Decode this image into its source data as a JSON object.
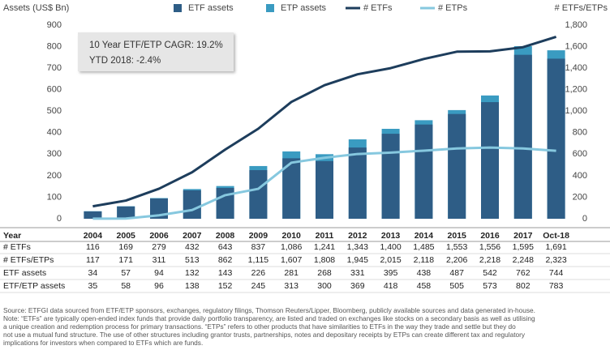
{
  "chart_data": {
    "type": "bar",
    "y_label": "Assets (US$ Bn)",
    "y2_label": "# ETFs/ETPs",
    "annotations": [
      "10 Year ETF/ETP CAGR: 19.2%",
      "YTD 2018: -2.4%"
    ],
    "table_header": "Year",
    "categories": [
      "2004",
      "2005",
      "2006",
      "2007",
      "2008",
      "2009",
      "2010",
      "2011",
      "2012",
      "2013",
      "2014",
      "2015",
      "2016",
      "2017",
      "Oct-18"
    ],
    "ylim": [
      0,
      900
    ],
    "yticks": [
      0,
      100,
      200,
      300,
      400,
      500,
      600,
      700,
      800,
      900
    ],
    "y2lim": [
      0,
      1800
    ],
    "y2ticks": [
      0,
      200,
      400,
      600,
      800,
      {
        "value": 1000,
        "label": "1,000"
      },
      {
        "value": 1200,
        "label": "1,200"
      },
      {
        "value": 1400,
        "label": "1,400"
      },
      {
        "value": 1600,
        "label": "1,600"
      },
      {
        "value": 1800,
        "label": "1,800"
      }
    ],
    "grid": false,
    "legend": [
      {
        "name": "ETF assets",
        "color": "#2e5d86",
        "mark": "bar"
      },
      {
        "name": "ETP assets",
        "color": "#3a9bc1",
        "mark": "bar"
      },
      {
        "name": "# ETFs",
        "color": "#1d3d5c",
        "mark": "line"
      },
      {
        "name": "# ETPs",
        "color": "#86c8df",
        "mark": "line"
      }
    ],
    "series": [
      {
        "name": "# ETFs",
        "mark": "line",
        "axis": "y2",
        "color": "#1d3d5c",
        "in_table": true,
        "values": [
          116,
          169,
          279,
          432,
          643,
          837,
          1086,
          1241,
          1343,
          1400,
          1485,
          1553,
          1556,
          1595,
          1691
        ],
        "value_labels": [
          "116",
          "169",
          "279",
          "432",
          "643",
          "837",
          "1,086",
          "1,241",
          "1,343",
          "1,400",
          "1,485",
          "1,553",
          "1,556",
          "1,595",
          "1,691"
        ]
      },
      {
        "name": "# ETFs/ETPs",
        "mark": "none",
        "axis": "y2",
        "in_table": true,
        "values": [
          117,
          171,
          311,
          513,
          862,
          1115,
          1607,
          1808,
          1945,
          2015,
          2118,
          2206,
          2218,
          2248,
          2323
        ],
        "value_labels": [
          "117",
          "171",
          "311",
          "513",
          "862",
          "1,115",
          "1,607",
          "1,808",
          "1,945",
          "2,015",
          "2,118",
          "2,206",
          "2,218",
          "2,248",
          "2,323"
        ]
      },
      {
        "name": "ETF assets",
        "mark": "bar",
        "axis": "y",
        "color": "#2e5d86",
        "in_table": true,
        "layer": 2,
        "values": [
          34,
          57,
          94,
          132,
          143,
          226,
          281,
          268,
          331,
          395,
          438,
          487,
          542,
          762,
          744
        ]
      },
      {
        "name": "ETF/ETP assets",
        "mark": "bar",
        "axis": "y",
        "color": "#3a9bc1",
        "in_table": true,
        "layer": 1,
        "values": [
          35,
          58,
          96,
          138,
          152,
          245,
          313,
          300,
          369,
          418,
          458,
          505,
          573,
          802,
          783
        ]
      },
      {
        "mark": "line",
        "axis": "y2",
        "color": "#86c8df",
        "in_table": false,
        "values": [
          1,
          2,
          32,
          81,
          219,
          278,
          521,
          567,
          602,
          615,
          633,
          653,
          662,
          653,
          632
        ]
      }
    ],
    "footnote": [
      "Source: ETFGI data sourced from ETF/ETP sponsors, exchanges, regulatory filings, Thomson Reuters/Lipper, Bloomberg, publicly available sources and data generated in-house.",
      "Note: “ETFs” are typically open-ended index funds that provide daily portfolio transparency, are listed and traded on exchanges like stocks on a secondary basis as well as utilising",
      "a unique creation and redemption process for primary transactions. “ETPs” refers to other products that have similarities to ETFs in the way they trade and settle but they do",
      "not use a mutual fund structure. The use of other structures including grantor trusts, partnerships, notes and depositary receipts by ETPs can create different tax and regulatory",
      "implications for investors when compared to ETFs which are funds."
    ]
  }
}
